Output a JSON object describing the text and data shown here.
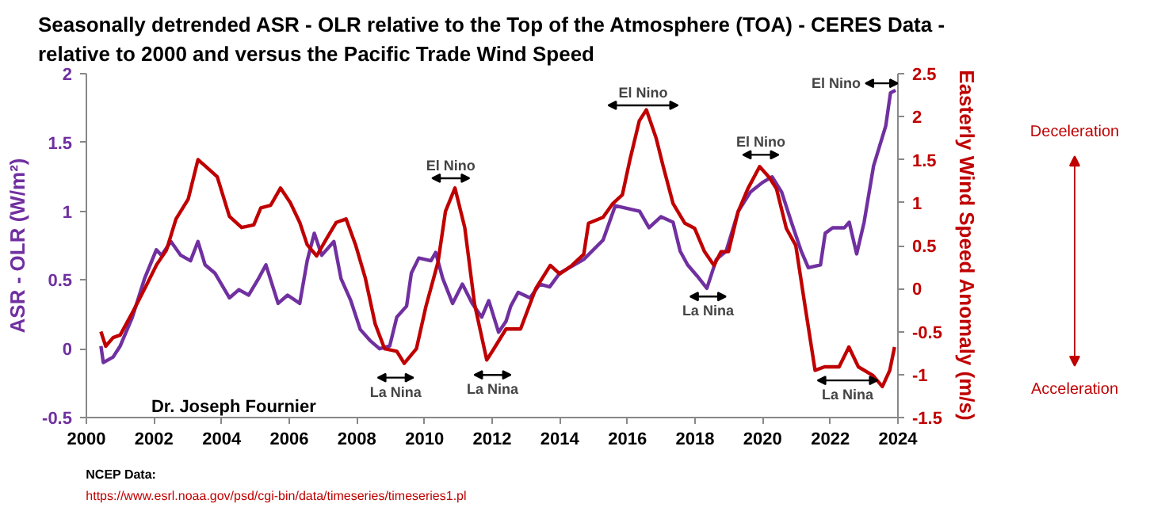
{
  "chart_data": {
    "type": "line",
    "title": "Seasonally detrended ASR - OLR relative to the Top of the Atmosphere (TOA) - CERES Data - relative to 2000 and versus the Pacific Trade Wind Speed",
    "ylabel": "ASR - OLR (W/m²)",
    "y2label": "Easterly Wind Speed Anomaly (m/s)",
    "xlim": [
      2000,
      2024
    ],
    "xticks": [
      2000,
      2002,
      2004,
      2006,
      2008,
      2010,
      2012,
      2014,
      2016,
      2018,
      2020,
      2022,
      2024
    ],
    "ylim": [
      -0.5,
      2
    ],
    "yticks": [
      -0.5,
      0,
      0.5,
      1,
      1.5,
      2
    ],
    "y2lim": [
      -1.5,
      2.5
    ],
    "y2ticks": [
      -1.5,
      -1,
      -0.5,
      0,
      0.5,
      1,
      1.5,
      2,
      2.5
    ],
    "grid": false,
    "marker": "none",
    "line_style": "solid",
    "series": [
      {
        "color": "#7030a0",
        "x": [
          2000.43,
          2000.5,
          2000.79,
          2001.0,
          2001.36,
          2001.72,
          2002.07,
          2002.22,
          2002.5,
          2002.79,
          2003.08,
          2003.3,
          2003.51,
          2003.8,
          2004.23,
          2004.51,
          2004.8,
          2005.09,
          2005.31,
          2005.67,
          2005.95,
          2006.31,
          2006.53,
          2006.74,
          2006.96,
          2007.32,
          2007.53,
          2007.82,
          2008.1,
          2008.39,
          2008.67,
          2008.97,
          2009.18,
          2009.47,
          2009.61,
          2009.83,
          2010.19,
          2010.33,
          2010.54,
          2010.83,
          2011.12,
          2011.41,
          2011.69,
          2011.9,
          2012.19,
          2012.41,
          2012.55,
          2012.77,
          2013.12,
          2013.41,
          2013.7,
          2014.0,
          2014.71,
          2015.28,
          2015.64,
          2016.0,
          2016.36,
          2016.64,
          2016.99,
          2017.35,
          2017.56,
          2017.78,
          2018.06,
          2018.35,
          2018.63,
          2018.92,
          2019.28,
          2019.64,
          2020.0,
          2020.28,
          2020.56,
          2020.85,
          2021.14,
          2021.35,
          2021.71,
          2021.85,
          2022.07,
          2022.42,
          2022.56,
          2022.78,
          2023.0,
          2023.28,
          2023.64,
          2023.78,
          2023.93
        ],
        "values": [
          0.02,
          -0.1,
          -0.06,
          0.02,
          0.23,
          0.51,
          0.72,
          0.68,
          0.78,
          0.68,
          0.64,
          0.78,
          0.61,
          0.55,
          0.37,
          0.43,
          0.39,
          0.51,
          0.61,
          0.33,
          0.39,
          0.33,
          0.64,
          0.84,
          0.68,
          0.78,
          0.51,
          0.35,
          0.14,
          0.06,
          0.0,
          0.02,
          0.23,
          0.31,
          0.55,
          0.66,
          0.64,
          0.7,
          0.51,
          0.33,
          0.47,
          0.33,
          0.23,
          0.35,
          0.12,
          0.2,
          0.31,
          0.41,
          0.37,
          0.47,
          0.45,
          0.55,
          0.65,
          0.79,
          1.04,
          1.02,
          1.0,
          0.88,
          0.96,
          0.92,
          0.71,
          0.61,
          0.53,
          0.44,
          0.65,
          0.71,
          1.0,
          1.14,
          1.21,
          1.25,
          1.14,
          0.92,
          0.71,
          0.59,
          0.61,
          0.84,
          0.88,
          0.88,
          0.92,
          0.69,
          0.92,
          1.33,
          1.62,
          1.86,
          1.88
        ]
      },
      {
        "color": "#c00000",
        "axis": "y2",
        "x": [
          2000.43,
          2000.57,
          2000.79,
          2001.0,
          2001.36,
          2001.79,
          2002.08,
          2002.37,
          2002.65,
          2003.01,
          2003.3,
          2003.59,
          2003.87,
          2004.23,
          2004.59,
          2004.95,
          2005.16,
          2005.45,
          2005.74,
          2006.03,
          2006.31,
          2006.53,
          2006.81,
          2007.1,
          2007.39,
          2007.68,
          2007.96,
          2008.25,
          2008.54,
          2008.82,
          2009.18,
          2009.4,
          2009.76,
          2010.04,
          2010.4,
          2010.62,
          2010.9,
          2011.19,
          2011.48,
          2011.84,
          2012.05,
          2012.41,
          2012.84,
          2013.29,
          2013.72,
          2014.0,
          2014.36,
          2014.71,
          2014.85,
          2015.28,
          2015.57,
          2015.85,
          2016.07,
          2016.35,
          2016.56,
          2016.85,
          2017.06,
          2017.35,
          2017.7,
          2017.99,
          2018.28,
          2018.56,
          2018.77,
          2018.99,
          2019.27,
          2019.56,
          2019.91,
          2020.2,
          2020.41,
          2020.7,
          2020.98,
          2021.26,
          2021.55,
          2021.83,
          2022.26,
          2022.55,
          2022.83,
          2023.26,
          2023.54,
          2023.76,
          2023.9
        ],
        "values": [
          -0.5,
          -0.67,
          -0.57,
          -0.54,
          -0.28,
          0.05,
          0.28,
          0.45,
          0.81,
          1.04,
          1.5,
          1.4,
          1.3,
          0.84,
          0.71,
          0.74,
          0.94,
          0.97,
          1.17,
          1.0,
          0.77,
          0.51,
          0.38,
          0.58,
          0.77,
          0.81,
          0.51,
          0.12,
          -0.41,
          -0.7,
          -0.73,
          -0.87,
          -0.7,
          -0.21,
          0.31,
          0.9,
          1.17,
          0.71,
          -0.18,
          -0.83,
          -0.7,
          -0.47,
          -0.47,
          0.0,
          0.27,
          0.17,
          0.27,
          0.4,
          0.76,
          0.83,
          0.99,
          1.09,
          1.49,
          1.95,
          2.08,
          1.75,
          1.42,
          0.99,
          0.76,
          0.7,
          0.43,
          0.27,
          0.43,
          0.43,
          0.89,
          1.16,
          1.42,
          1.29,
          1.16,
          0.7,
          0.5,
          -0.22,
          -0.95,
          -0.91,
          -0.91,
          -0.68,
          -0.91,
          -1.01,
          -1.14,
          -0.95,
          -0.68
        ]
      }
    ],
    "annotations": [
      "El Nino",
      "La Nina",
      "La Nina",
      "El Nino",
      "La Nina",
      "El Nino",
      "La Nina",
      "El Nino",
      "Dr. Joseph Fournier",
      "Deceleration",
      "Acceleration",
      "NCEP Data:",
      "https://www.esrl.noaa.gov/psd/cgi-bin/data/timeseries/timeseries1.pl"
    ]
  }
}
